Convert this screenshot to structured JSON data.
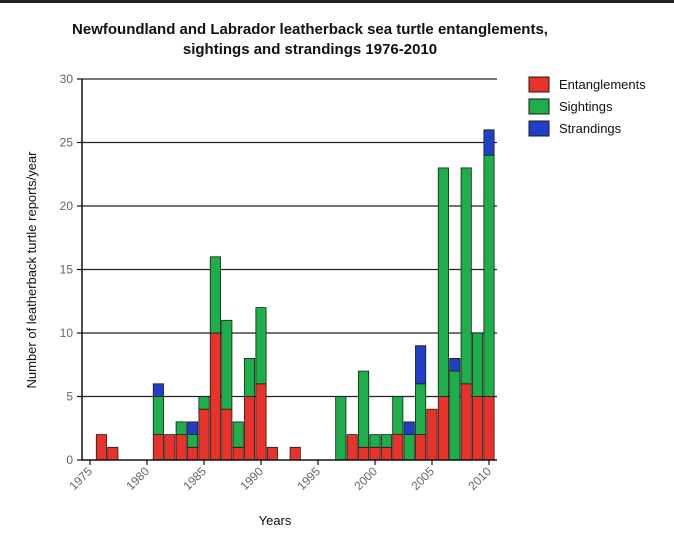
{
  "chart_data": {
    "type": "bar",
    "stacked": true,
    "title_line1": "Newfoundland and Labrador leatherback sea turtle entanglements,",
    "title_line2": "sightings and strandings 1976-2010",
    "xlabel": "Years",
    "ylabel": "Number of leatherback turtle reports/year",
    "ylim": [
      0,
      30
    ],
    "yticks": [
      0,
      5,
      10,
      15,
      20,
      25,
      30
    ],
    "xlim": [
      1975,
      2010
    ],
    "xticks": [
      1975,
      1980,
      1985,
      1990,
      1995,
      2000,
      2005,
      2010
    ],
    "grid": "horizontal",
    "legend_position": "top-right",
    "colors": {
      "Entanglements": "#e8322a",
      "Sightings": "#1db04a",
      "Strandings": "#1f3fc8"
    },
    "x": [
      1976,
      1977,
      1981,
      1982,
      1983,
      1984,
      1985,
      1986,
      1987,
      1988,
      1989,
      1990,
      1991,
      1993,
      1997,
      1998,
      1999,
      2000,
      2001,
      2002,
      2003,
      2004,
      2005,
      2006,
      2007,
      2008,
      2009,
      2010
    ],
    "series": [
      {
        "name": "Entanglements",
        "values": [
          2,
          1,
          2,
          2,
          2,
          1,
          4,
          10,
          4,
          1,
          5,
          6,
          1,
          1,
          0,
          2,
          1,
          1,
          1,
          2,
          0,
          2,
          4,
          5,
          0,
          6,
          5,
          5
        ]
      },
      {
        "name": "Sightings",
        "values": [
          0,
          0,
          3,
          0,
          1,
          1,
          1,
          6,
          7,
          2,
          3,
          6,
          0,
          0,
          5,
          0,
          6,
          1,
          1,
          3,
          2,
          4,
          0,
          18,
          7,
          17,
          5,
          19
        ]
      },
      {
        "name": "Strandings",
        "values": [
          0,
          0,
          1,
          0,
          0,
          1,
          0,
          0,
          0,
          0,
          0,
          0,
          0,
          0,
          0,
          0,
          0,
          0,
          0,
          0,
          1,
          3,
          0,
          0,
          1,
          0,
          0,
          2
        ]
      }
    ]
  }
}
